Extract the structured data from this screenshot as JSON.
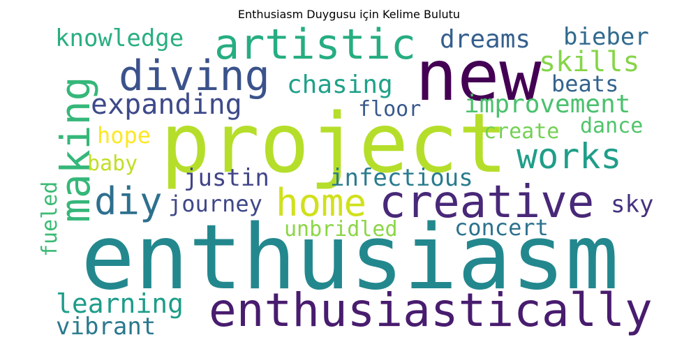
{
  "title": "Enthusiasm Duygusu için Kelime Bulutu",
  "words": [
    {
      "text": "enthusiasm",
      "color": "#23888e"
    },
    {
      "text": "project",
      "color": "#b5de2b"
    },
    {
      "text": "new",
      "color": "#440154"
    },
    {
      "text": "enthusiastically",
      "color": "#481c6e"
    },
    {
      "text": "artistic",
      "color": "#26ad81"
    },
    {
      "text": "diving",
      "color": "#3b528b"
    },
    {
      "text": "creative",
      "color": "#482878"
    },
    {
      "text": "making",
      "color": "#35b779"
    },
    {
      "text": "works",
      "color": "#1f9e89"
    },
    {
      "text": "home",
      "color": "#d0e11c"
    },
    {
      "text": "diy",
      "color": "#2d708e"
    },
    {
      "text": "expanding",
      "color": "#3e4a89"
    },
    {
      "text": "knowledge",
      "color": "#29af7f"
    },
    {
      "text": "dreams",
      "color": "#355f8d"
    },
    {
      "text": "bieber",
      "color": "#306a8e"
    },
    {
      "text": "skills",
      "color": "#86d549"
    },
    {
      "text": "chasing",
      "color": "#1fa188"
    },
    {
      "text": "beats",
      "color": "#33638d"
    },
    {
      "text": "improvement",
      "color": "#4ac16d"
    },
    {
      "text": "floor",
      "color": "#38598c"
    },
    {
      "text": "hope",
      "color": "#fde725"
    },
    {
      "text": "create",
      "color": "#75d054"
    },
    {
      "text": "dance",
      "color": "#50c46a"
    },
    {
      "text": "baby",
      "color": "#c0df25"
    },
    {
      "text": "justin",
      "color": "#414487"
    },
    {
      "text": "infectious",
      "color": "#297b8e"
    },
    {
      "text": "fueled",
      "color": "#3cbb75"
    },
    {
      "text": "journey",
      "color": "#3f4788"
    },
    {
      "text": "sky",
      "color": "#46327e"
    },
    {
      "text": "unbridled",
      "color": "#8bd646"
    },
    {
      "text": "concert",
      "color": "#2c728e"
    },
    {
      "text": "learning",
      "color": "#1e9c89"
    },
    {
      "text": "vibrant",
      "color": "#2a788e"
    }
  ]
}
